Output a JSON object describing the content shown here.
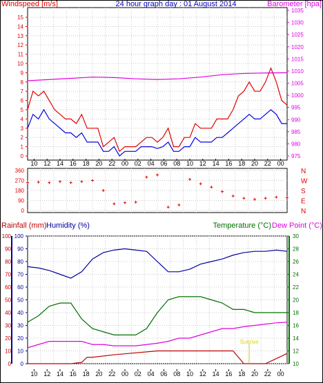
{
  "header": {
    "left_label": "Windspeed [m/s]",
    "center_title": "24 hour graph day : 01 August 2014",
    "right_label": "Barometer [hpa]"
  },
  "colors": {
    "wind_gust": "#e00000",
    "wind_avg": "#0000e0",
    "barometer": "#e000e0",
    "direction": "#e00000",
    "humidity": "#0000a0",
    "temperature": "#007000",
    "dew_point": "#e000e0",
    "rainfall": "#c00000",
    "sunrise": "#d8d800",
    "frame": "#000000"
  },
  "x_tick_labels_top": [
    "10",
    "12",
    "14",
    "16",
    "18",
    "20",
    "22",
    "00",
    "02",
    "04",
    "06",
    "08",
    "10",
    "12",
    "14",
    "16",
    "18",
    "20",
    "22",
    "00"
  ],
  "x_tick_labels_bottom": [
    "10",
    "12",
    "14",
    "16",
    "18",
    "20",
    "22",
    "00",
    "02",
    "04",
    "06",
    "08",
    "10",
    "12",
    "14",
    "16",
    "18",
    "20",
    "22",
    "00"
  ],
  "sunrise_label": "Sunrise",
  "chart_data": [
    {
      "type": "line",
      "name": "wind_barometer",
      "x_hours": [
        0,
        24
      ],
      "left_axis": {
        "label": "Windspeed [m/s]",
        "ticks": [
          0,
          1,
          2,
          3,
          4,
          5,
          6,
          7,
          8,
          9,
          10,
          11,
          12,
          13,
          14,
          15
        ],
        "ylim": [
          0,
          15.5
        ]
      },
      "right_axis": {
        "label": "Barometer [hpa]",
        "ticks": [
          975,
          980,
          985,
          990,
          995,
          1000,
          1005,
          1010,
          1015,
          1020,
          1025,
          1030,
          1035
        ],
        "ylim": [
          975,
          1035
        ]
      },
      "series": [
        {
          "name": "gust",
          "axis": "left",
          "x": [
            0,
            0.5,
            1,
            1.5,
            2,
            2.5,
            3,
            3.5,
            4,
            4.5,
            5,
            5.5,
            6,
            6.5,
            7,
            7.5,
            8,
            8.5,
            9,
            9.5,
            10,
            10.5,
            11,
            11.5,
            12,
            12.5,
            13,
            13.5,
            14,
            14.5,
            15,
            15.5,
            16,
            16.5,
            17,
            17.5,
            18,
            18.5,
            19,
            19.5,
            20,
            20.5,
            21,
            21.5,
            22,
            22.5,
            23,
            23.5,
            24
          ],
          "values": [
            5,
            7,
            6.5,
            7,
            6,
            5,
            4.5,
            4,
            4,
            3.5,
            4.5,
            3,
            3,
            3,
            1,
            1.5,
            2,
            0.5,
            1,
            1,
            1,
            1.5,
            2,
            2,
            1.5,
            2,
            3,
            1,
            1,
            2,
            2,
            3.5,
            3,
            3,
            3,
            4,
            4,
            4,
            5,
            6.5,
            7,
            8,
            7,
            7,
            8,
            9.5,
            8,
            6,
            5.5
          ]
        },
        {
          "name": "average",
          "axis": "left",
          "x": [
            0,
            0.5,
            1,
            1.5,
            2,
            2.5,
            3,
            3.5,
            4,
            4.5,
            5,
            5.5,
            6,
            6.5,
            7,
            7.5,
            8,
            8.5,
            9,
            9.5,
            10,
            10.5,
            11,
            11.5,
            12,
            12.5,
            13,
            13.5,
            14,
            14.5,
            15,
            15.5,
            16,
            16.5,
            17,
            17.5,
            18,
            18.5,
            19,
            19.5,
            20,
            20.5,
            21,
            21.5,
            22,
            22.5,
            23,
            23.5,
            24
          ],
          "values": [
            3,
            4.5,
            4,
            5,
            4,
            3.5,
            3,
            2.5,
            2.5,
            2,
            2.5,
            1.5,
            1.5,
            1.5,
            0.5,
            0.5,
            1,
            0,
            0.5,
            0.5,
            0.5,
            1,
            1,
            1,
            0.8,
            1,
            1.5,
            0.5,
            0.5,
            1,
            1,
            2,
            1.5,
            1.5,
            1.5,
            2,
            2,
            2.5,
            3,
            3.5,
            4,
            4.5,
            4,
            4,
            4.5,
            5,
            4.5,
            3.5,
            3.5
          ]
        },
        {
          "name": "barometer",
          "axis": "right",
          "x": [
            0,
            2,
            4,
            6,
            8,
            10,
            12,
            14,
            16,
            18,
            20,
            22,
            24
          ],
          "values": [
            1006,
            1006.5,
            1007,
            1007.5,
            1007.3,
            1006.8,
            1006.5,
            1006.8,
            1007.5,
            1008.5,
            1009,
            1009.2,
            1009.3
          ]
        }
      ]
    },
    {
      "type": "scatter",
      "name": "wind_direction",
      "y_ticks_left": [
        0,
        90,
        180,
        270,
        360
      ],
      "y_labels_right": [
        "N",
        "W",
        "S",
        "E",
        "N"
      ],
      "ylim": [
        0,
        360
      ],
      "x": [
        0,
        1,
        2,
        3,
        4,
        5,
        6,
        7,
        8,
        9,
        10,
        11,
        12,
        13,
        14,
        15,
        16,
        17,
        18,
        19,
        20,
        21,
        22,
        23,
        24
      ],
      "values": [
        250,
        255,
        250,
        260,
        250,
        260,
        270,
        180,
        60,
        70,
        75,
        300,
        320,
        30,
        50,
        280,
        240,
        210,
        170,
        130,
        110,
        100,
        110,
        120,
        115
      ]
    },
    {
      "type": "line",
      "name": "rain_humidity_temp",
      "left_axis_rainfall": {
        "label": "Rainfall (mm)",
        "ticks": [
          0,
          10,
          20,
          30,
          40,
          50,
          60,
          70,
          80,
          90,
          100
        ],
        "ylim": [
          0,
          100
        ]
      },
      "left_axis_humidity": {
        "label": "Humidity (%)",
        "ticks": [
          0,
          10,
          20,
          30,
          40,
          50,
          60,
          70,
          80,
          90,
          100
        ],
        "ylim": [
          0,
          100
        ]
      },
      "right_axis": {
        "label": "Temperature (°C)",
        "ticks": [
          10,
          12,
          14,
          16,
          18,
          20,
          22,
          24,
          26,
          28,
          30
        ],
        "ylim": [
          10,
          30
        ]
      },
      "right_label_dew": "Dew Point (°C)",
      "series": [
        {
          "name": "humidity",
          "axis": "left",
          "x": [
            0,
            1,
            2,
            3,
            4,
            5,
            6,
            7,
            8,
            9,
            10,
            11,
            12,
            13,
            14,
            15,
            16,
            17,
            18,
            19,
            20,
            21,
            22,
            23,
            24
          ],
          "values": [
            76,
            75,
            73,
            70,
            67,
            72,
            82,
            87,
            89,
            90,
            89,
            88,
            80,
            72,
            72,
            74,
            78,
            80,
            82,
            85,
            87,
            88,
            88,
            89,
            88
          ]
        },
        {
          "name": "temperature",
          "axis": "right",
          "x": [
            0,
            1,
            2,
            3,
            4,
            5,
            6,
            7,
            8,
            9,
            10,
            11,
            12,
            13,
            14,
            15,
            16,
            17,
            18,
            19,
            20,
            21,
            22,
            23,
            24
          ],
          "values": [
            16.5,
            17.5,
            19,
            19.5,
            19.5,
            17,
            15.5,
            15,
            14.5,
            14.5,
            14.5,
            15.5,
            18,
            20,
            20.5,
            20.5,
            20.5,
            20,
            19.5,
            18.5,
            18.5,
            18,
            18,
            18,
            18
          ]
        },
        {
          "name": "dew_point",
          "axis": "right",
          "x": [
            0,
            1,
            2,
            3,
            4,
            5,
            6,
            7,
            8,
            9,
            10,
            11,
            12,
            13,
            14,
            15,
            16,
            17,
            18,
            19,
            20,
            21,
            22,
            23,
            24
          ],
          "values": [
            12.5,
            13,
            13.5,
            13.5,
            13.5,
            13.5,
            13,
            13,
            12.8,
            12.8,
            12.8,
            13,
            13.2,
            13.5,
            14,
            14,
            14.5,
            15,
            15.5,
            15.5,
            15.8,
            16,
            16.2,
            16.4,
            16.5
          ]
        },
        {
          "name": "rainfall",
          "axis": "left",
          "x": [
            0,
            4,
            5,
            5.5,
            6,
            8,
            12,
            13,
            14,
            15,
            16,
            17,
            19,
            20,
            20.3,
            21,
            22,
            24
          ],
          "values": [
            0,
            0,
            1,
            5,
            5,
            7,
            10,
            10,
            10,
            10,
            10,
            10,
            10,
            0,
            0,
            0,
            0,
            8
          ]
        }
      ],
      "sunrise_hour": 20.5
    }
  ]
}
